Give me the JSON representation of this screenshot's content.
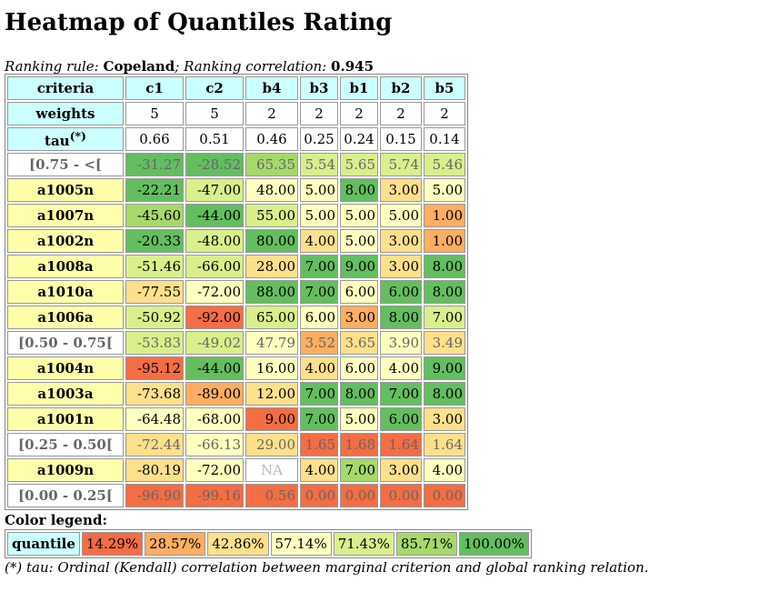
{
  "title": "Heatmap of Quantiles Rating",
  "subtitle": {
    "rule_label": "Ranking rule",
    "rule_value": "Copeland",
    "corr_label": "Ranking correlation",
    "corr_value": "0.945"
  },
  "table": {
    "criteria_label": "criteria",
    "weights_label": "weights",
    "tau_label": "tau",
    "tau_sup": "(*)",
    "columns": [
      "c1",
      "c2",
      "b4",
      "b3",
      "b1",
      "b2",
      "b5"
    ],
    "weights": [
      "5",
      "5",
      "2",
      "2",
      "2",
      "2",
      "2"
    ],
    "tau": [
      "0.66",
      "0.51",
      "0.46",
      "0.25",
      "0.24",
      "0.15",
      "0.14"
    ],
    "rows": [
      {
        "label": "[0.75 - <[",
        "kind": "quantile",
        "cells": [
          {
            "v": "-31.27",
            "c": "#63be5f"
          },
          {
            "v": "-28.52",
            "c": "#63be5f"
          },
          {
            "v": "65.35",
            "c": "#a6d96a"
          },
          {
            "v": "5.54",
            "c": "#d9ef8b"
          },
          {
            "v": "5.65",
            "c": "#d9ef8b"
          },
          {
            "v": "5.74",
            "c": "#d9ef8b"
          },
          {
            "v": "5.46",
            "c": "#d9ef8b"
          }
        ]
      },
      {
        "label": "a1005n",
        "kind": "alt",
        "cells": [
          {
            "v": "-22.21",
            "c": "#63be5f"
          },
          {
            "v": "-47.00",
            "c": "#d9ef8b"
          },
          {
            "v": "48.00",
            "c": "#ffffc0"
          },
          {
            "v": "5.00",
            "c": "#ffffc0"
          },
          {
            "v": "8.00",
            "c": "#63be5f"
          },
          {
            "v": "3.00",
            "c": "#fee08b"
          },
          {
            "v": "5.00",
            "c": "#ffffc0"
          }
        ]
      },
      {
        "label": "a1007n",
        "kind": "alt",
        "cells": [
          {
            "v": "-45.60",
            "c": "#a6d96a"
          },
          {
            "v": "-44.00",
            "c": "#63be5f"
          },
          {
            "v": "55.00",
            "c": "#d9ef8b"
          },
          {
            "v": "5.00",
            "c": "#ffffc0"
          },
          {
            "v": "5.00",
            "c": "#ffffc0"
          },
          {
            "v": "5.00",
            "c": "#ffffc0"
          },
          {
            "v": "1.00",
            "c": "#fdae61"
          }
        ]
      },
      {
        "label": "a1002n",
        "kind": "alt",
        "cells": [
          {
            "v": "-20.33",
            "c": "#63be5f"
          },
          {
            "v": "-48.00",
            "c": "#d9ef8b"
          },
          {
            "v": "80.00",
            "c": "#63be5f"
          },
          {
            "v": "4.00",
            "c": "#fee08b"
          },
          {
            "v": "5.00",
            "c": "#ffffc0"
          },
          {
            "v": "3.00",
            "c": "#fee08b"
          },
          {
            "v": "1.00",
            "c": "#fdae61"
          }
        ]
      },
      {
        "label": "a1008a",
        "kind": "alt",
        "cells": [
          {
            "v": "-51.46",
            "c": "#d9ef8b"
          },
          {
            "v": "-66.00",
            "c": "#d9ef8b"
          },
          {
            "v": "28.00",
            "c": "#fee08b"
          },
          {
            "v": "7.00",
            "c": "#63be5f"
          },
          {
            "v": "9.00",
            "c": "#63be5f"
          },
          {
            "v": "3.00",
            "c": "#fee08b"
          },
          {
            "v": "8.00",
            "c": "#63be5f"
          }
        ]
      },
      {
        "label": "a1010a",
        "kind": "alt",
        "cells": [
          {
            "v": "-77.55",
            "c": "#fee08b"
          },
          {
            "v": "-72.00",
            "c": "#ffffc0"
          },
          {
            "v": "88.00",
            "c": "#63be5f"
          },
          {
            "v": "7.00",
            "c": "#63be5f"
          },
          {
            "v": "6.00",
            "c": "#ffffc0"
          },
          {
            "v": "6.00",
            "c": "#63be5f"
          },
          {
            "v": "8.00",
            "c": "#63be5f"
          }
        ]
      },
      {
        "label": "a1006a",
        "kind": "alt",
        "cells": [
          {
            "v": "-50.92",
            "c": "#d9ef8b"
          },
          {
            "v": "-92.00",
            "c": "#f46d43"
          },
          {
            "v": "65.00",
            "c": "#d9ef8b"
          },
          {
            "v": "6.00",
            "c": "#ffffc0"
          },
          {
            "v": "3.00",
            "c": "#fdae61"
          },
          {
            "v": "8.00",
            "c": "#63be5f"
          },
          {
            "v": "7.00",
            "c": "#d9ef8b"
          }
        ]
      },
      {
        "label": "[0.50 - 0.75[",
        "kind": "quantile",
        "cells": [
          {
            "v": "-53.83",
            "c": "#d9ef8b"
          },
          {
            "v": "-49.02",
            "c": "#d9ef8b"
          },
          {
            "v": "47.79",
            "c": "#ffffc0"
          },
          {
            "v": "3.52",
            "c": "#fdae61"
          },
          {
            "v": "3.65",
            "c": "#fee08b"
          },
          {
            "v": "3.90",
            "c": "#ffffc0"
          },
          {
            "v": "3.49",
            "c": "#fee08b"
          }
        ]
      },
      {
        "label": "a1004n",
        "kind": "alt",
        "cells": [
          {
            "v": "-95.12",
            "c": "#f46d43"
          },
          {
            "v": "-44.00",
            "c": "#63be5f"
          },
          {
            "v": "16.00",
            "c": "#ffffc0"
          },
          {
            "v": "4.00",
            "c": "#fee08b"
          },
          {
            "v": "6.00",
            "c": "#ffffc0"
          },
          {
            "v": "4.00",
            "c": "#ffffc0"
          },
          {
            "v": "9.00",
            "c": "#63be5f"
          }
        ]
      },
      {
        "label": "a1003a",
        "kind": "alt",
        "cells": [
          {
            "v": "-73.68",
            "c": "#fee08b"
          },
          {
            "v": "-89.00",
            "c": "#fdae61"
          },
          {
            "v": "12.00",
            "c": "#fee08b"
          },
          {
            "v": "7.00",
            "c": "#63be5f"
          },
          {
            "v": "8.00",
            "c": "#63be5f"
          },
          {
            "v": "7.00",
            "c": "#63be5f"
          },
          {
            "v": "8.00",
            "c": "#63be5f"
          }
        ]
      },
      {
        "label": "a1001n",
        "kind": "alt",
        "cells": [
          {
            "v": "-64.48",
            "c": "#ffffc0"
          },
          {
            "v": "-68.00",
            "c": "#ffffc0"
          },
          {
            "v": "9.00",
            "c": "#f46d43"
          },
          {
            "v": "7.00",
            "c": "#63be5f"
          },
          {
            "v": "5.00",
            "c": "#ffffc0"
          },
          {
            "v": "6.00",
            "c": "#63be5f"
          },
          {
            "v": "3.00",
            "c": "#fee08b"
          }
        ]
      },
      {
        "label": "[0.25 - 0.50[",
        "kind": "quantile",
        "cells": [
          {
            "v": "-72.44",
            "c": "#fee08b"
          },
          {
            "v": "-66.13",
            "c": "#ffffc0"
          },
          {
            "v": "29.00",
            "c": "#fee08b"
          },
          {
            "v": "1.65",
            "c": "#f46d43"
          },
          {
            "v": "1.68",
            "c": "#f46d43"
          },
          {
            "v": "1.64",
            "c": "#f46d43"
          },
          {
            "v": "1.64",
            "c": "#fee08b"
          }
        ]
      },
      {
        "label": "a1009n",
        "kind": "alt",
        "cells": [
          {
            "v": "-80.19",
            "c": "#fee08b"
          },
          {
            "v": "-72.00",
            "c": "#ffffc0"
          },
          {
            "v": "NA",
            "c": "#ffffff",
            "na": true
          },
          {
            "v": "4.00",
            "c": "#fee08b"
          },
          {
            "v": "7.00",
            "c": "#a6d96a"
          },
          {
            "v": "3.00",
            "c": "#fee08b"
          },
          {
            "v": "4.00",
            "c": "#ffffc0"
          }
        ]
      },
      {
        "label": "[0.00 - 0.25[",
        "kind": "quantile",
        "cells": [
          {
            "v": "-96.90",
            "c": "#f46d43"
          },
          {
            "v": "-99.16",
            "c": "#f46d43"
          },
          {
            "v": "0.56",
            "c": "#f46d43"
          },
          {
            "v": "0.00",
            "c": "#f46d43"
          },
          {
            "v": "0.00",
            "c": "#f46d43"
          },
          {
            "v": "0.00",
            "c": "#f46d43"
          },
          {
            "v": "0.00",
            "c": "#f46d43"
          }
        ]
      }
    ]
  },
  "legend": {
    "title": "Color legend:",
    "label": "quantile",
    "items": [
      {
        "v": "14.29%",
        "c": "#f46d43"
      },
      {
        "v": "28.57%",
        "c": "#fdae61"
      },
      {
        "v": "42.86%",
        "c": "#fee08b"
      },
      {
        "v": "57.14%",
        "c": "#ffffc0"
      },
      {
        "v": "71.43%",
        "c": "#d9ef8b"
      },
      {
        "v": "85.71%",
        "c": "#a6d96a"
      },
      {
        "v": "100.00%",
        "c": "#63be5f"
      }
    ]
  },
  "note": "(*) tau: Ordinal (Kendall) correlation between marginal criterion and global ranking relation."
}
